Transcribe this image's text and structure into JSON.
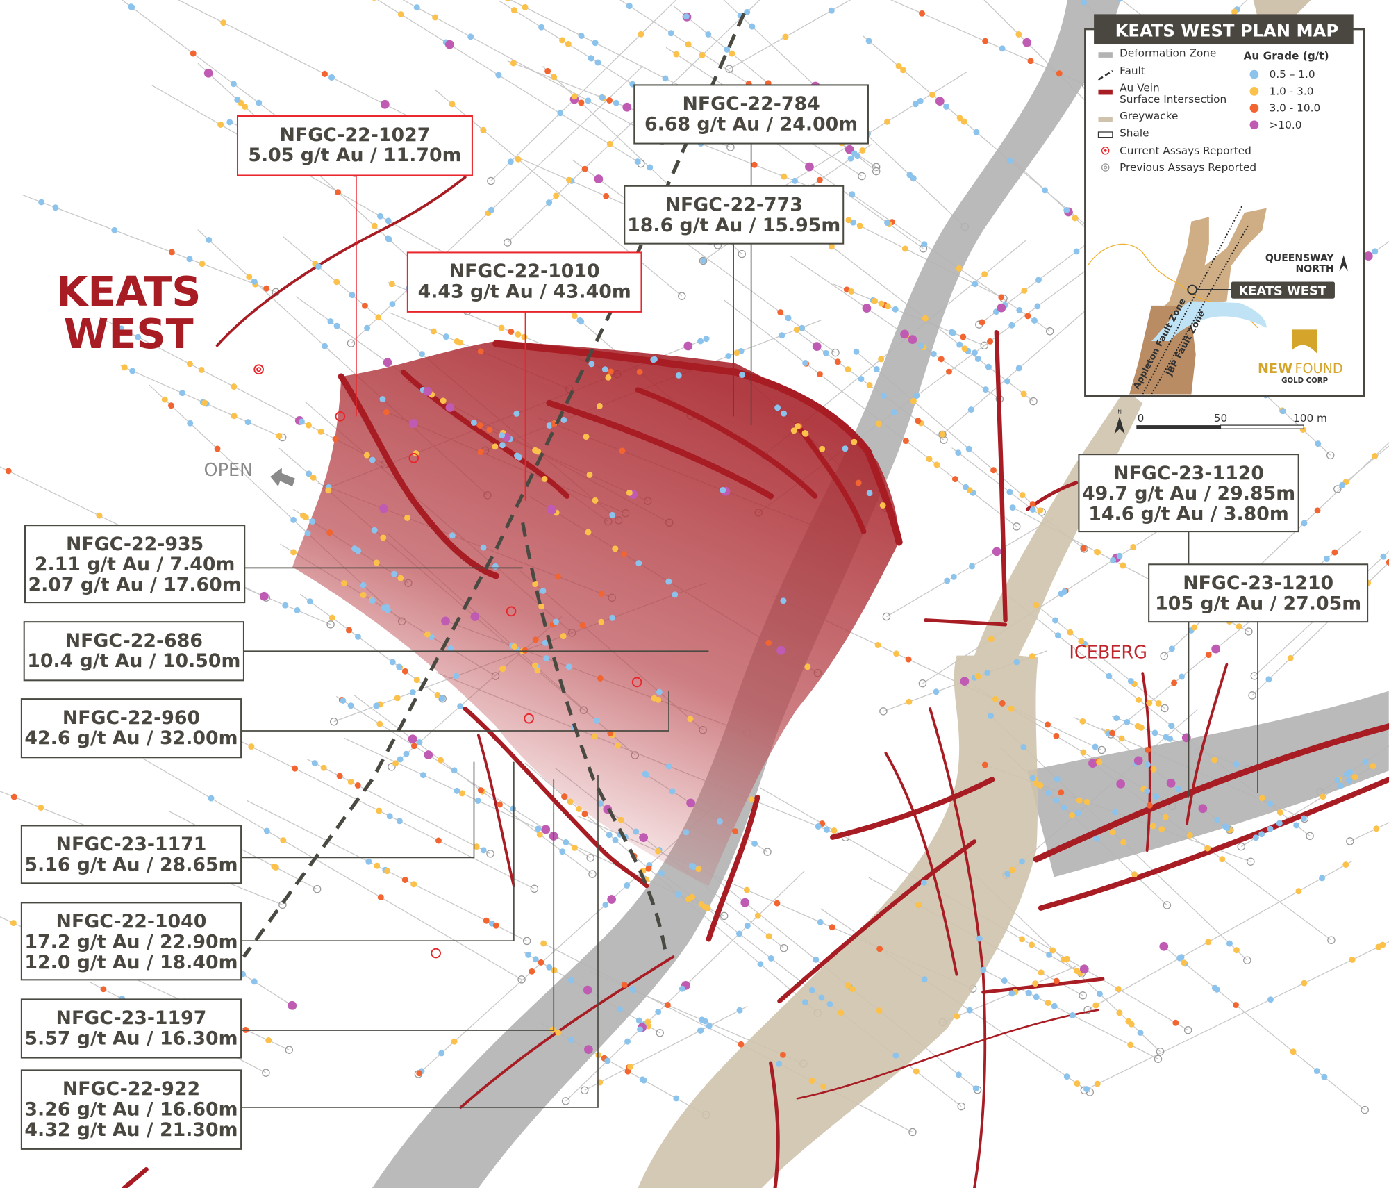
{
  "map_labels": {
    "title_line1": "KEATS",
    "title_line2": "WEST",
    "open": "OPEN",
    "iceberg": "ICEBERG"
  },
  "colors": {
    "deformation_zone": "#b3b3b3",
    "greywacke": "#cfc3ad",
    "au_vein": "#a81c24",
    "zone_shading": "#a8272e",
    "fault": "#4a4a42",
    "grade_0_5_1": "#8cc3ec",
    "grade_1_3": "#fbc14a",
    "grade_3_10": "#f26430",
    "grade_gt10": "#c05bb3",
    "current_assay": "#e8262b",
    "previous_assay": "#9a9a9a",
    "header_bg": "#4a4740",
    "brand_gold": "#d4a52a"
  },
  "legend": {
    "title": "KEATS WEST PLAN MAP",
    "items": [
      {
        "label": "Deformation Zone",
        "icon": "grey-swatch"
      },
      {
        "label": "Fault",
        "icon": "dashed-line"
      },
      {
        "label": "Au Vein",
        "label2": "Surface Intersection",
        "icon": "red-swatch"
      },
      {
        "label": "Greywacke",
        "icon": "tan-swatch"
      },
      {
        "label": "Shale",
        "icon": "empty-swatch"
      },
      {
        "label": "Current Assays Reported",
        "icon": "red-target"
      },
      {
        "label": "Previous Assays Reported",
        "icon": "grey-target"
      }
    ],
    "grade_title": "Au Grade (g/t)",
    "grades": [
      {
        "label": "0.5 – 1.0",
        "color": "#8cc3ec"
      },
      {
        "label": "1.0 - 3.0",
        "color": "#fbc14a"
      },
      {
        "label": "3.0 - 10.0",
        "color": "#f26430"
      },
      {
        "label": ">10.0",
        "color": "#c05bb3"
      }
    ],
    "inset": {
      "region": "QUEENSWAY",
      "region2": "NORTH",
      "site": "KEATS WEST",
      "fault1": "Appleton Fault Zone",
      "fault2": "JBP Fault Zone",
      "north": "N"
    },
    "logo": {
      "new": "NEW",
      "found": "FOUND",
      "sub": "GOLD CORP"
    }
  },
  "scale_bar": {
    "north": "N",
    "ticks": [
      "0",
      "50",
      "100 m"
    ]
  },
  "callouts": [
    {
      "id": "NFGC-22-1027",
      "lines": [
        "5.05 g/t Au / 11.70m"
      ],
      "current": true
    },
    {
      "id": "NFGC-22-784",
      "lines": [
        "6.68 g/t Au / 24.00m"
      ],
      "current": false
    },
    {
      "id": "NFGC-22-773",
      "lines": [
        "18.6 g/t Au / 15.95m"
      ],
      "current": false
    },
    {
      "id": "NFGC-22-1010",
      "lines": [
        "4.43 g/t Au / 43.40m"
      ],
      "current": true
    },
    {
      "id": "NFGC-22-935",
      "lines": [
        "2.11 g/t Au / 7.40m",
        "2.07 g/t Au / 17.60m"
      ],
      "current": false
    },
    {
      "id": "NFGC-22-686",
      "lines": [
        "10.4 g/t Au / 10.50m"
      ],
      "current": false
    },
    {
      "id": "NFGC-22-960",
      "lines": [
        "42.6 g/t Au / 32.00m"
      ],
      "current": false
    },
    {
      "id": "NFGC-23-1171",
      "lines": [
        "5.16 g/t Au / 28.65m"
      ],
      "current": false
    },
    {
      "id": "NFGC-22-1040",
      "lines": [
        "17.2 g/t Au / 22.90m",
        "12.0 g/t Au / 18.40m"
      ],
      "current": false
    },
    {
      "id": "NFGC-23-1197",
      "lines": [
        "5.57 g/t Au / 16.30m"
      ],
      "current": false
    },
    {
      "id": "NFGC-22-922",
      "lines": [
        "3.26 g/t Au / 16.60m",
        "4.32 g/t Au / 21.30m"
      ],
      "current": false
    },
    {
      "id": "NFGC-23-1120",
      "lines": [
        "49.7 g/t Au / 29.85m",
        "14.6 g/t Au / 3.80m"
      ],
      "current": false
    },
    {
      "id": "NFGC-23-1210",
      "lines": [
        "105 g/t Au / 27.05m"
      ],
      "current": false
    }
  ]
}
